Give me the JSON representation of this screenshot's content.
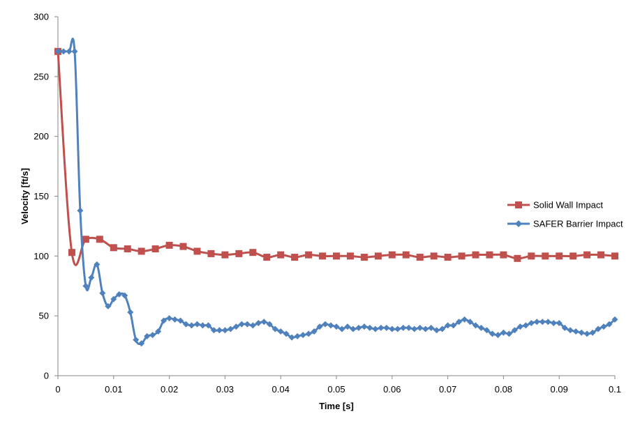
{
  "chart_data": {
    "type": "line",
    "title": "",
    "xlabel": "Time [s]",
    "ylabel": "Velocity [ft/s]",
    "xlim": [
      0,
      0.1
    ],
    "ylim": [
      0,
      300
    ],
    "x_ticks": [
      "0",
      "0.01",
      "0.02",
      "0.03",
      "0.04",
      "0.05",
      "0.06",
      "0.07",
      "0.08",
      "0.09",
      "0.1"
    ],
    "y_ticks": [
      "0",
      "50",
      "100",
      "150",
      "200",
      "250",
      "300"
    ],
    "grid": false,
    "legend_position": "right",
    "series": [
      {
        "name": "Solid Wall Impact",
        "color": "#c0504d",
        "marker": "square",
        "x": [
          0,
          0.0025,
          0.005,
          0.0075,
          0.01,
          0.0125,
          0.015,
          0.0175,
          0.02,
          0.0225,
          0.025,
          0.0275,
          0.03,
          0.0325,
          0.035,
          0.0375,
          0.04,
          0.0425,
          0.045,
          0.0475,
          0.05,
          0.0525,
          0.055,
          0.0575,
          0.06,
          0.0625,
          0.065,
          0.0675,
          0.07,
          0.0725,
          0.075,
          0.0775,
          0.08,
          0.0825,
          0.085,
          0.0875,
          0.09,
          0.0925,
          0.095,
          0.0975,
          0.1
        ],
        "y": [
          271,
          103,
          114,
          114,
          107,
          106,
          104,
          106,
          109,
          108,
          104,
          102,
          101,
          102,
          103,
          99,
          101,
          99,
          101,
          100,
          100,
          100,
          99,
          100,
          101,
          101,
          99,
          100,
          99,
          100,
          101,
          101,
          101,
          98,
          100,
          100,
          100,
          100,
          101,
          101,
          100
        ]
      },
      {
        "name": "SAFER Barrier Impact",
        "color": "#4f81bd",
        "marker": "diamond",
        "x": [
          0,
          0.001,
          0.002,
          0.003,
          0.004,
          0.005,
          0.006,
          0.007,
          0.008,
          0.009,
          0.01,
          0.011,
          0.012,
          0.013,
          0.014,
          0.015,
          0.016,
          0.017,
          0.018,
          0.019,
          0.02,
          0.021,
          0.022,
          0.023,
          0.024,
          0.025,
          0.026,
          0.027,
          0.028,
          0.029,
          0.03,
          0.031,
          0.032,
          0.033,
          0.034,
          0.035,
          0.036,
          0.037,
          0.038,
          0.039,
          0.04,
          0.041,
          0.042,
          0.043,
          0.044,
          0.045,
          0.046,
          0.047,
          0.048,
          0.049,
          0.05,
          0.051,
          0.052,
          0.053,
          0.054,
          0.055,
          0.056,
          0.057,
          0.058,
          0.059,
          0.06,
          0.061,
          0.062,
          0.063,
          0.064,
          0.065,
          0.066,
          0.067,
          0.068,
          0.069,
          0.07,
          0.071,
          0.072,
          0.073,
          0.074,
          0.075,
          0.076,
          0.077,
          0.078,
          0.079,
          0.08,
          0.081,
          0.082,
          0.083,
          0.084,
          0.085,
          0.086,
          0.087,
          0.088,
          0.089,
          0.09,
          0.091,
          0.092,
          0.093,
          0.094,
          0.095,
          0.096,
          0.097,
          0.098,
          0.099,
          0.1
        ],
        "y": [
          271,
          271,
          271,
          271,
          138,
          75,
          82,
          93,
          69,
          58,
          64,
          68,
          67,
          53,
          30,
          27,
          33,
          34,
          37,
          46,
          48,
          47,
          46,
          43,
          42,
          43,
          42,
          42,
          38,
          38,
          38,
          39,
          41,
          43,
          43,
          42,
          44,
          45,
          43,
          39,
          37,
          35,
          32,
          33,
          34,
          35,
          37,
          41,
          43,
          42,
          41,
          39,
          41,
          39,
          40,
          41,
          40,
          39,
          40,
          40,
          39,
          39,
          40,
          40,
          39,
          40,
          39,
          40,
          38,
          39,
          42,
          42,
          45,
          47,
          45,
          42,
          40,
          38,
          35,
          34,
          36,
          35,
          38,
          41,
          42,
          44,
          45,
          45,
          45,
          44,
          44,
          40,
          38,
          37,
          36,
          35,
          36,
          39,
          41,
          43,
          47
        ]
      }
    ]
  }
}
